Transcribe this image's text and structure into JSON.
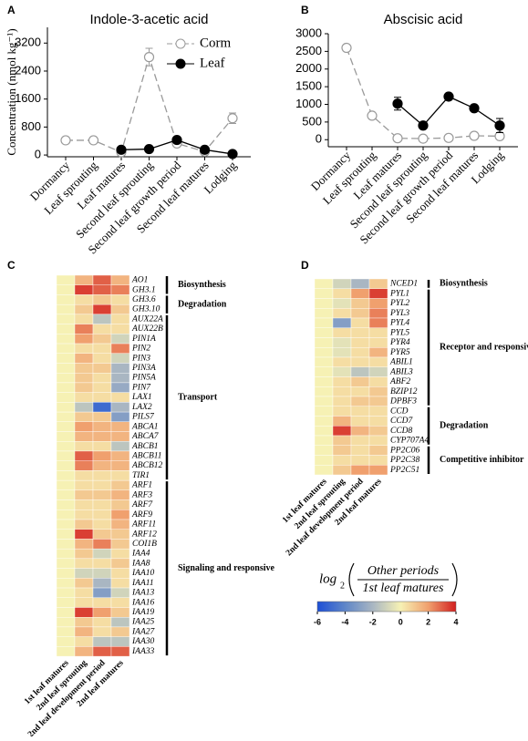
{
  "chart_data": [
    {
      "type": "line",
      "panel": "A",
      "title": "Indole-3-acetic acid",
      "y_label": "Concentration (nmol kg⁻¹)",
      "categories": [
        "Dormancy",
        "Leaf sprouting",
        "Leaf matures",
        "Second leaf sprouting",
        "Second leaf growth period",
        "Second leaf matures",
        "Lodging"
      ],
      "series": [
        {
          "name": "Corm",
          "color": "#9a9a9a",
          "dash": true,
          "marker": "open",
          "values": [
            420,
            420,
            80,
            2800,
            330,
            100,
            1050
          ],
          "errors": [
            null,
            null,
            null,
            250,
            null,
            null,
            150
          ]
        },
        {
          "name": "Leaf",
          "color": "#000000",
          "dash": false,
          "marker": "filled",
          "values": [
            null,
            null,
            150,
            170,
            430,
            150,
            30
          ],
          "errors": [
            null,
            null,
            null,
            null,
            60,
            null,
            null
          ]
        }
      ],
      "ylim": [
        -50,
        3650
      ],
      "yticks": [
        0,
        800,
        1600,
        2400,
        3200
      ],
      "legend": "upper right"
    },
    {
      "type": "line",
      "panel": "B",
      "title": "Abscisic acid",
      "categories": [
        "Dormancy",
        "Leaf sprouting",
        "Leaf matures",
        "Second leaf sprouting",
        "Second leaf growth period",
        "Second leaf matures",
        "Lodging"
      ],
      "series": [
        {
          "name": "Corm",
          "color": "#9a9a9a",
          "dash": true,
          "marker": "open",
          "values": [
            2600,
            680,
            40,
            30,
            50,
            110,
            100
          ],
          "errors": [
            null,
            null,
            null,
            null,
            null,
            null,
            null
          ]
        },
        {
          "name": "Leaf",
          "color": "#000000",
          "dash": false,
          "marker": "filled",
          "values": [
            null,
            null,
            1020,
            400,
            1220,
            890,
            400
          ],
          "errors": [
            null,
            null,
            180,
            null,
            60,
            50,
            200
          ]
        }
      ],
      "ylim": [
        -200,
        3000
      ],
      "yticks": [
        0,
        500,
        1000,
        1500,
        2000,
        2500,
        3000
      ],
      "legend": false
    },
    {
      "type": "heatmap",
      "panel": "C",
      "columns": [
        "1st leaf matures",
        "2nd leaf sprouting",
        "2nd leaf development period",
        "2nd leaf matures"
      ],
      "rows": [
        "AO1",
        "GH3.1",
        "GH3.6",
        "GH3.10",
        "AUX22A",
        "AUX22B",
        "PIN1A",
        "PIN2",
        "PIN3",
        "PIN3A",
        "PIN5A",
        "PIN7",
        "LAX1",
        "LAX2",
        "PILS7",
        "ABCA1",
        "ABCA7",
        "ABCB1",
        "ABCB11",
        "ABCB12",
        "TIR1",
        "ARF1",
        "ARF3",
        "ARF7",
        "ARF9",
        "ARF11",
        "ARF12",
        "COI1B",
        "IAA4",
        "IAA8",
        "IAA10",
        "IAA11",
        "IAA13",
        "IAA16",
        "IAA19",
        "IAA25",
        "IAA27",
        "IAA30",
        "IAA33"
      ],
      "values": [
        [
          0,
          1.5,
          3,
          1.5
        ],
        [
          0,
          3.5,
          3,
          2.5
        ],
        [
          0,
          0.5,
          1,
          0.5
        ],
        [
          0,
          1,
          3.5,
          1
        ],
        [
          0,
          0.5,
          -1.5,
          0.5
        ],
        [
          0,
          2.5,
          0.5,
          0.5
        ],
        [
          0,
          2,
          1,
          -1
        ],
        [
          0,
          0.5,
          0.5,
          2.5
        ],
        [
          0,
          1.5,
          0.5,
          -1
        ],
        [
          0,
          1,
          1,
          -2
        ],
        [
          0,
          1,
          0.5,
          -2
        ],
        [
          0,
          1,
          0.5,
          -2.5
        ],
        [
          0,
          0.5,
          0.5,
          0.5
        ],
        [
          0,
          -1.5,
          -5,
          -2
        ],
        [
          0,
          1,
          1,
          -3
        ],
        [
          0,
          2,
          1.5,
          1.5
        ],
        [
          0,
          1.5,
          1.5,
          1.5
        ],
        [
          0,
          0.5,
          0.5,
          -1.5
        ],
        [
          0,
          3,
          2,
          1.5
        ],
        [
          0,
          2.5,
          1.5,
          1.5
        ],
        [
          0,
          0.5,
          0.5,
          0.5
        ],
        [
          0,
          0.5,
          0.5,
          1
        ],
        [
          0,
          1,
          1,
          1.5
        ],
        [
          0,
          0.5,
          0.5,
          1
        ],
        [
          0,
          0.5,
          0.5,
          2
        ],
        [
          0,
          1,
          0.5,
          1.5
        ],
        [
          0,
          3.5,
          1,
          1
        ],
        [
          0,
          1.5,
          2.5,
          1
        ],
        [
          0,
          1,
          -1,
          0.5
        ],
        [
          0,
          0.5,
          0.5,
          1
        ],
        [
          0,
          -1,
          -1,
          0.5
        ],
        [
          0,
          1,
          -2,
          0.5
        ],
        [
          0,
          0.5,
          -3,
          -1
        ],
        [
          0,
          0.5,
          0.5,
          0.5
        ],
        [
          0,
          3.5,
          2,
          1
        ],
        [
          0,
          1,
          0.5,
          -1.5
        ],
        [
          0,
          1.5,
          0.5,
          1
        ],
        [
          0,
          0.5,
          -1.5,
          -1.5
        ],
        [
          0,
          1.5,
          3,
          3
        ]
      ],
      "groups": [
        {
          "label": "Biosynthesis",
          "count": 2
        },
        {
          "label": "Degradation",
          "count": 2
        },
        {
          "label": "Transport",
          "count": 17
        },
        {
          "label": "Signaling and responsive",
          "count": 18
        }
      ]
    },
    {
      "type": "heatmap",
      "panel": "D",
      "columns": [
        "1st leaf matures",
        "2nd leaf sprouting",
        "2nd leaf development period",
        "2nd leaf matures"
      ],
      "rows": [
        "NCED1",
        "PYL1",
        "PYL2",
        "PYL3",
        "PYL4",
        "PYL5",
        "PYR4",
        "PYR5",
        "ABIL1",
        "ABIL3",
        "ABF2",
        "BZIP12",
        "DPBF3",
        "CCD",
        "CCD7",
        "CCD8",
        "CYP707A4",
        "PP2C06",
        "PP2C38",
        "PP2C51"
      ],
      "values": [
        [
          0,
          -1,
          -2,
          1
        ],
        [
          0,
          0.5,
          2,
          3.5
        ],
        [
          0,
          -0.5,
          1,
          2
        ],
        [
          0,
          0.5,
          1,
          2.5
        ],
        [
          0,
          -3,
          0.5,
          2.5
        ],
        [
          0,
          0.5,
          0.5,
          0.5
        ],
        [
          0,
          -0.5,
          0.5,
          0.5
        ],
        [
          0,
          -0.5,
          0.5,
          1.5
        ],
        [
          0,
          0.5,
          0.5,
          0.5
        ],
        [
          0,
          -0.5,
          -1.5,
          -1
        ],
        [
          0,
          0.5,
          1,
          0.5
        ],
        [
          0,
          0.5,
          0.5,
          1
        ],
        [
          0,
          0.5,
          1,
          1
        ],
        [
          0,
          0.5,
          0.5,
          0.5
        ],
        [
          0,
          1.5,
          0.5,
          0.5
        ],
        [
          0,
          3.5,
          1.5,
          1
        ],
        [
          0,
          1,
          0.5,
          0.5
        ],
        [
          0,
          1,
          0.5,
          1
        ],
        [
          0,
          0.5,
          0.5,
          0.5
        ],
        [
          0,
          1,
          2,
          2
        ]
      ],
      "groups": [
        {
          "label": "Biosynthesis",
          "count": 1
        },
        {
          "label": "Receptor and responsive",
          "count": 12
        },
        {
          "label": "Degradation",
          "count": 4
        },
        {
          "label": "Competitive inhibitor",
          "count": 3
        }
      ]
    }
  ],
  "colorbar": {
    "log": "log",
    "base": "2",
    "numerator": "Other periods",
    "denominator": "1st leaf matures",
    "clim": [
      -6,
      4
    ],
    "ticks": [
      -6,
      -4,
      -2,
      0,
      2,
      4
    ],
    "stops": [
      {
        "value": -6,
        "color": "#1d4fd6"
      },
      {
        "value": -4,
        "color": "#5f86c8"
      },
      {
        "value": -2,
        "color": "#a9b6c2"
      },
      {
        "value": 0,
        "color": "#f6f1b4"
      },
      {
        "value": 2,
        "color": "#f0a06e"
      },
      {
        "value": 4,
        "color": "#d21f1f"
      }
    ]
  }
}
